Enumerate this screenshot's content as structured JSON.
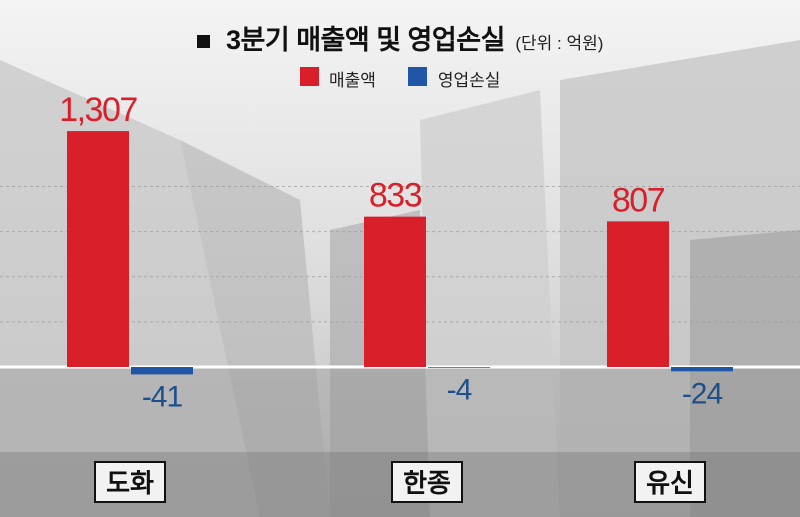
{
  "title": "3분기 매출액 및 영업손실",
  "unit": "(단위 : 억원)",
  "colors": {
    "revenue": "#d81f2a",
    "loss": "#1f56a8",
    "axis": "#ffffff",
    "label_bg": "#f2f2f2"
  },
  "chart_data": {
    "type": "bar",
    "title": "3분기 매출액 및 영업손실",
    "subtitle": "(단위 : 억원)",
    "categories": [
      "도화",
      "한종",
      "유신"
    ],
    "series": [
      {
        "name": "매출액",
        "values": [
          1307,
          833,
          807
        ],
        "labels": [
          "1,307",
          "833",
          "807"
        ],
        "color": "#d81f2a"
      },
      {
        "name": "영업손실",
        "values": [
          -41,
          -4,
          -24
        ],
        "labels": [
          "-41",
          "-4",
          "-24"
        ],
        "color": "#1f56a8"
      }
    ],
    "ylim": [
      -100,
      1450
    ],
    "grid": true,
    "legend_position": "top-center",
    "xlabel": "",
    "ylabel": ""
  }
}
